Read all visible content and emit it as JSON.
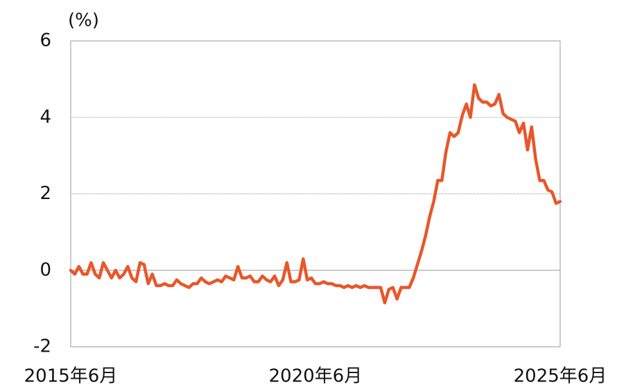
{
  "chart_data": {
    "type": "line",
    "ylabel": "(%)",
    "categories": [
      "2015年6月",
      null,
      null,
      null,
      null,
      null,
      null,
      null,
      null,
      null,
      null,
      null,
      null,
      null,
      null,
      null,
      null,
      null,
      null,
      null,
      null,
      null,
      null,
      null,
      null,
      null,
      null,
      null,
      null,
      null,
      null,
      null,
      null,
      null,
      null,
      null,
      null,
      null,
      null,
      null,
      null,
      null,
      null,
      null,
      null,
      null,
      null,
      null,
      null,
      null,
      null,
      null,
      null,
      null,
      null,
      null,
      null,
      null,
      null,
      null,
      "2020年6月",
      null,
      null,
      null,
      null,
      null,
      null,
      null,
      null,
      null,
      null,
      null,
      null,
      null,
      null,
      null,
      null,
      null,
      null,
      null,
      null,
      null,
      null,
      null,
      null,
      null,
      null,
      null,
      null,
      null,
      null,
      null,
      null,
      null,
      null,
      null,
      null,
      null,
      null,
      null,
      null,
      null,
      null,
      null,
      null,
      null,
      null,
      null,
      null,
      null,
      null,
      null,
      null,
      null,
      null,
      null,
      null,
      null,
      null,
      null,
      "2025年6月"
    ],
    "series": [
      {
        "color": "#e8572a",
        "values": [
          0.0,
          -0.1,
          0.1,
          -0.1,
          -0.1,
          0.2,
          -0.1,
          -0.2,
          0.2,
          0.0,
          -0.2,
          0.0,
          -0.2,
          -0.1,
          0.1,
          -0.2,
          -0.3,
          0.2,
          0.15,
          -0.35,
          -0.1,
          -0.4,
          -0.4,
          -0.35,
          -0.4,
          -0.4,
          -0.25,
          -0.35,
          -0.4,
          -0.45,
          -0.35,
          -0.35,
          -0.2,
          -0.3,
          -0.35,
          -0.3,
          -0.25,
          -0.3,
          -0.15,
          -0.2,
          -0.25,
          0.1,
          -0.2,
          -0.2,
          -0.15,
          -0.3,
          -0.3,
          -0.15,
          -0.25,
          -0.3,
          -0.15,
          -0.4,
          -0.25,
          0.2,
          -0.3,
          -0.3,
          -0.25,
          0.3,
          -0.25,
          -0.2,
          -0.35,
          -0.35,
          -0.3,
          -0.35,
          -0.35,
          -0.4,
          -0.4,
          -0.45,
          -0.4,
          -0.45,
          -0.4,
          -0.45,
          -0.4,
          -0.45,
          -0.45,
          -0.45,
          -0.45,
          -0.85,
          -0.5,
          -0.45,
          -0.75,
          -0.45,
          -0.45,
          -0.45,
          -0.2,
          0.15,
          0.5,
          0.9,
          1.4,
          1.8,
          2.35,
          2.35,
          3.1,
          3.6,
          3.5,
          3.6,
          4.05,
          4.35,
          4.0,
          4.85,
          4.5,
          4.4,
          4.4,
          4.3,
          4.35,
          4.6,
          4.1,
          4.0,
          3.95,
          3.9,
          3.6,
          3.85,
          3.15,
          3.75,
          2.9,
          2.35,
          2.35,
          2.1,
          2.05,
          1.75,
          1.8
        ]
      }
    ],
    "ylim": [
      -2,
      6
    ],
    "yticks": [
      -2,
      0,
      2,
      4,
      6
    ],
    "grid": true
  }
}
